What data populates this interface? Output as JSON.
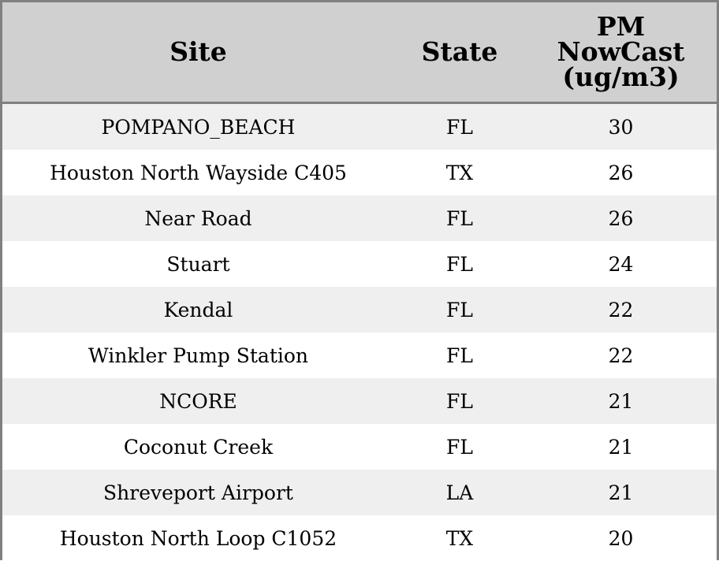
{
  "table": {
    "header": [
      "Site",
      "State",
      "PM NowCast (ug/m3)"
    ],
    "rows": [
      [
        "POMPANO_BEACH",
        "FL",
        30
      ],
      [
        "Houston North Wayside C405",
        "TX",
        26
      ],
      [
        "Near Road",
        "FL",
        26
      ],
      [
        "Stuart",
        "FL",
        24
      ],
      [
        "Kendal",
        "FL",
        22
      ],
      [
        "Winkler Pump Station",
        "FL",
        22
      ],
      [
        "NCORE",
        "FL",
        21
      ],
      [
        "Coconut Creek",
        "FL",
        21
      ],
      [
        "Shreveport Airport",
        "LA",
        21
      ],
      [
        "Houston North Loop C1052",
        "TX",
        20
      ]
    ]
  }
}
